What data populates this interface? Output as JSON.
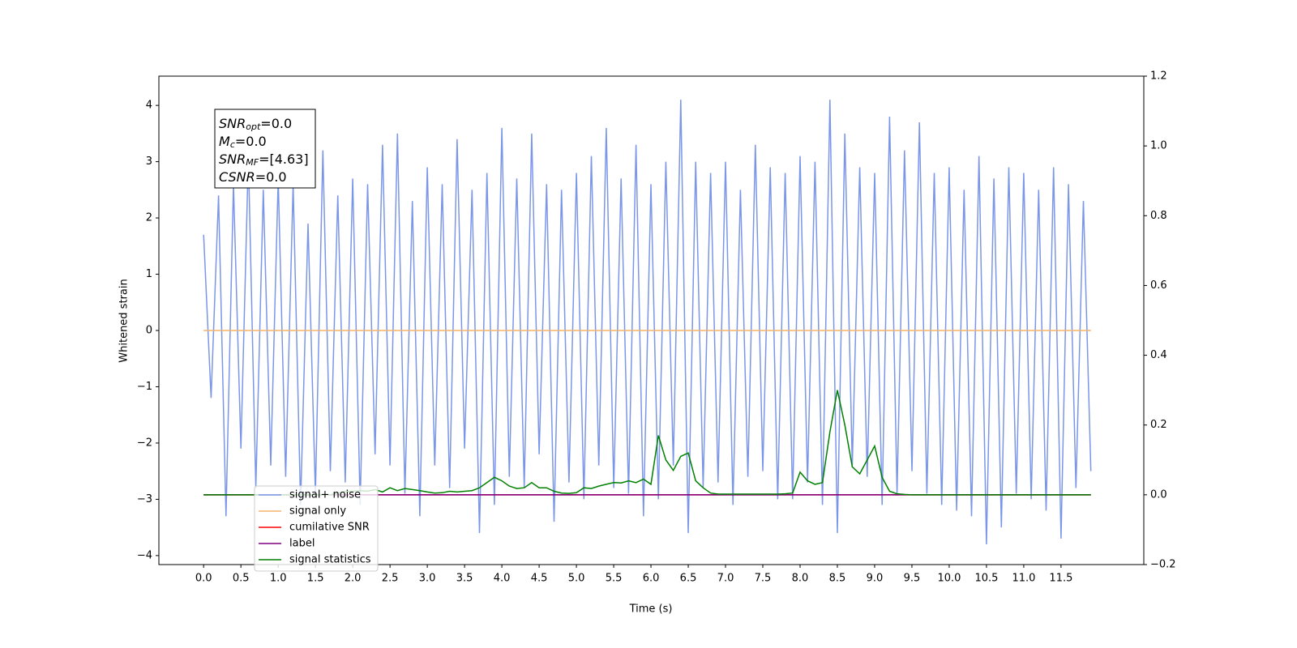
{
  "chart_data": {
    "type": "line",
    "xlabel": "Time (s)",
    "ylabel": "Whitened strain",
    "xlim": [
      -0.6,
      12.61
    ],
    "ylim": [
      -4.16,
      4.52
    ],
    "y2lim": [
      -0.2,
      1.2
    ],
    "xticks": [
      {
        "value": 0,
        "label": "0.0"
      },
      0.5,
      {
        "value": 1,
        "label": "1.0"
      },
      1.5,
      {
        "value": 2,
        "label": "2.0"
      },
      2.5,
      {
        "value": 3,
        "label": "3.0"
      },
      3.5,
      {
        "value": 4,
        "label": "4.0"
      },
      4.5,
      {
        "value": 5,
        "label": "5.0"
      },
      5.5,
      {
        "value": 6,
        "label": "6.0"
      },
      6.5,
      {
        "value": 7,
        "label": "7.0"
      },
      7.5,
      {
        "value": 8,
        "label": "8.0"
      },
      8.5,
      {
        "value": 9,
        "label": "9.0"
      },
      9.5,
      {
        "value": 10,
        "label": "10.0"
      },
      10.5,
      {
        "value": 11,
        "label": "11.0"
      },
      11.5
    ],
    "yticks": [
      {
        "value": -4,
        "label": "−4"
      },
      {
        "value": -3,
        "label": "−3"
      },
      {
        "value": -2,
        "label": "−2"
      },
      {
        "value": -1,
        "label": "−1"
      },
      0,
      1,
      2,
      3,
      4
    ],
    "y2ticks": [
      {
        "value": -0.2,
        "label": "−0.2"
      },
      {
        "value": 0,
        "label": "0.0"
      },
      0.2,
      0.4,
      0.6,
      0.8,
      {
        "value": 1,
        "label": "1.0"
      },
      1.2
    ],
    "legend": "lower left",
    "annotations": [
      {
        "base": "SNR",
        "sub": "opt",
        "text": "=0.0"
      },
      {
        "base": "M",
        "sub": "c",
        "text": "=0.0"
      },
      {
        "base": "SNR",
        "sub": "MF",
        "text": "=[4.63]"
      },
      {
        "base": "CSNR",
        "text": "=0.0"
      }
    ],
    "x": [
      0,
      0.1,
      0.2,
      0.3,
      0.4,
      0.5,
      0.6,
      0.7,
      0.8,
      0.9,
      1,
      1.1,
      1.2,
      1.3,
      1.4,
      1.5,
      1.6,
      1.7,
      1.8,
      1.9,
      2,
      2.1,
      2.2,
      2.3,
      2.4,
      2.5,
      2.6,
      2.7,
      2.8,
      2.9,
      3,
      3.1,
      3.2,
      3.3,
      3.4,
      3.5,
      3.6,
      3.7,
      3.8,
      3.9,
      4,
      4.1,
      4.2,
      4.3,
      4.4,
      4.5,
      4.6,
      4.7,
      4.8,
      4.9,
      5,
      5.1,
      5.2,
      5.3,
      5.4,
      5.5,
      5.6,
      5.7,
      5.8,
      5.9,
      6,
      6.1,
      6.2,
      6.3,
      6.4,
      6.5,
      6.6,
      6.7,
      6.8,
      6.9,
      7,
      7.1,
      7.2,
      7.3,
      7.4,
      7.5,
      7.6,
      7.7,
      7.8,
      7.9,
      8,
      8.1,
      8.2,
      8.3,
      8.4,
      8.5,
      8.6,
      8.7,
      8.8,
      8.9,
      9,
      9.1,
      9.2,
      9.3,
      9.4,
      9.5,
      9.6,
      9.7,
      9.8,
      9.9,
      10,
      10.1,
      10.2,
      10.3,
      10.4,
      10.5,
      10.6,
      10.7,
      10.8,
      10.9,
      11,
      11.1,
      11.2,
      11.3,
      11.4,
      11.5,
      11.6,
      11.7,
      11.8,
      11.9
    ],
    "series": [
      {
        "name": "signal+ noise",
        "color": "#7b96e8",
        "values": [
          1.7,
          -1.2,
          2.4,
          -3.3,
          2.6,
          -2.1,
          3.1,
          -2.8,
          2.5,
          -2.4,
          2.7,
          -2.6,
          2.6,
          -3.1,
          1.9,
          -2.9,
          3.2,
          -2.5,
          2.4,
          -2.7,
          2.7,
          -3.1,
          2.6,
          -2.2,
          3.3,
          -2.4,
          3.5,
          -2.9,
          2.3,
          -3.3,
          2.9,
          -2.4,
          2.6,
          -2.8,
          3.4,
          -2.1,
          2.5,
          -3.6,
          2.8,
          -3.1,
          3.6,
          -2.6,
          2.7,
          -2.8,
          3.5,
          -2.2,
          2.6,
          -3.4,
          2.5,
          -2.7,
          2.8,
          -3.0,
          3.1,
          -2.4,
          3.6,
          -2.8,
          2.7,
          -2.9,
          3.3,
          -3.3,
          2.6,
          -3.0,
          3.0,
          -2.4,
          4.1,
          -3.6,
          3.0,
          -2.8,
          2.8,
          -2.7,
          3.0,
          -3.1,
          2.5,
          -2.6,
          3.3,
          -2.5,
          2.9,
          -3.0,
          2.8,
          -3.0,
          3.1,
          -2.7,
          3.0,
          -3.1,
          4.1,
          -3.6,
          3.5,
          -2.4,
          2.9,
          -2.6,
          2.8,
          -3.1,
          3.8,
          -2.9,
          3.2,
          -2.5,
          3.7,
          -2.9,
          2.8,
          -3.1,
          2.9,
          -3.2,
          2.5,
          -3.3,
          3.1,
          -3.8,
          2.7,
          -3.5,
          2.9,
          -2.9,
          2.8,
          -3.0,
          2.5,
          -3.2,
          2.9,
          -3.7,
          2.6,
          -2.8,
          2.3,
          -2.5
        ]
      },
      {
        "name": "signal only",
        "color": "#f5b36b",
        "values": [
          0,
          0,
          0,
          0,
          0,
          0,
          0,
          0,
          0,
          0,
          0,
          0,
          0,
          0,
          0,
          0,
          0,
          0,
          0,
          0,
          0,
          0,
          0,
          0,
          0,
          0,
          0,
          0,
          0,
          0,
          0,
          0,
          0,
          0,
          0,
          0,
          0,
          0,
          0,
          0,
          0,
          0,
          0,
          0,
          0,
          0,
          0,
          0,
          0,
          0,
          0,
          0,
          0,
          0,
          0,
          0,
          0,
          0,
          0,
          0,
          0,
          0,
          0,
          0,
          0,
          0,
          0,
          0,
          0,
          0,
          0,
          0,
          0,
          0,
          0,
          0,
          0,
          0,
          0,
          0,
          0,
          0,
          0,
          0,
          0,
          0,
          0,
          0,
          0,
          0,
          0,
          0,
          0,
          0,
          0,
          0,
          0,
          0,
          0,
          0,
          0,
          0,
          0,
          0,
          0,
          0,
          0,
          0,
          0,
          0,
          0,
          0,
          0,
          0,
          0,
          0,
          0,
          0,
          0,
          0
        ]
      },
      {
        "name": "cumilative SNR",
        "color": "#ff0000",
        "axis": "y2",
        "values": [
          0,
          0,
          0,
          0,
          0,
          0,
          0,
          0,
          0,
          0,
          0,
          0,
          0,
          0,
          0,
          0,
          0,
          0,
          0,
          0,
          0,
          0,
          0,
          0,
          0,
          0,
          0,
          0,
          0,
          0,
          0,
          0,
          0,
          0,
          0,
          0,
          0,
          0,
          0,
          0,
          0,
          0,
          0,
          0,
          0,
          0,
          0,
          0,
          0,
          0,
          0,
          0,
          0,
          0,
          0,
          0,
          0,
          0,
          0,
          0,
          0,
          0,
          0,
          0,
          0,
          0,
          0,
          0,
          0,
          0,
          0,
          0,
          0,
          0,
          0,
          0,
          0,
          0,
          0,
          0,
          0,
          0,
          0,
          0,
          0,
          0,
          0,
          0,
          0,
          0,
          0,
          0,
          0,
          0,
          0,
          0,
          0,
          0,
          0,
          0,
          0,
          0,
          0,
          0,
          0,
          0,
          0,
          0,
          0,
          0,
          0,
          0,
          0,
          0,
          0,
          0,
          0,
          0,
          0,
          0
        ]
      },
      {
        "name": "label",
        "color": "#800080",
        "axis": "y2",
        "values": [
          0,
          0,
          0,
          0,
          0,
          0,
          0,
          0,
          0,
          0,
          0,
          0,
          0,
          0,
          0,
          0,
          0,
          0,
          0,
          0,
          0,
          0,
          0,
          0,
          0,
          0,
          0,
          0,
          0,
          0,
          0,
          0,
          0,
          0,
          0,
          0,
          0,
          0,
          0,
          0,
          0,
          0,
          0,
          0,
          0,
          0,
          0,
          0,
          0,
          0,
          0,
          0,
          0,
          0,
          0,
          0,
          0,
          0,
          0,
          0,
          0,
          0,
          0,
          0,
          0,
          0,
          0,
          0,
          0,
          0,
          0,
          0,
          0,
          0,
          0,
          0,
          0,
          0,
          0,
          0,
          0,
          0,
          0,
          0,
          0,
          0,
          0,
          0,
          0,
          0,
          0,
          0,
          0,
          0,
          0,
          0,
          0,
          0,
          0,
          0,
          0,
          0,
          0,
          0,
          0,
          0,
          0,
          0,
          0,
          0,
          0,
          0,
          0,
          0,
          0,
          0,
          0,
          0,
          0,
          0
        ]
      },
      {
        "name": "signal statistics",
        "color": "#008000",
        "axis": "y2",
        "values": [
          0,
          0,
          0,
          0,
          0,
          0,
          0,
          0,
          0,
          0,
          0,
          0,
          0,
          0,
          0,
          0,
          0,
          0,
          0.005,
          0.01,
          0.01,
          0.012,
          0.01,
          0.015,
          0.008,
          0.02,
          0.012,
          0.018,
          0.015,
          0.012,
          0.008,
          0.005,
          0.006,
          0.01,
          0.008,
          0.01,
          0.012,
          0.02,
          0.035,
          0.05,
          0.04,
          0.025,
          0.018,
          0.02,
          0.035,
          0.02,
          0.02,
          0.01,
          0.005,
          0.004,
          0.006,
          0.02,
          0.018,
          0.025,
          0.03,
          0.035,
          0.034,
          0.04,
          0.035,
          0.045,
          0.03,
          0.17,
          0.1,
          0.07,
          0.11,
          0.12,
          0.04,
          0.02,
          0.005,
          0.002,
          0.002,
          0.002,
          0.002,
          0.002,
          0.002,
          0.002,
          0.002,
          0.002,
          0.003,
          0.005,
          0.065,
          0.04,
          0.03,
          0.035,
          0.18,
          0.3,
          0.2,
          0.08,
          0.06,
          0.1,
          0.14,
          0.05,
          0.01,
          0.003,
          0.001,
          0,
          0,
          0,
          0,
          0,
          0,
          0,
          0,
          0,
          0,
          0,
          0,
          0,
          0,
          0,
          0,
          0,
          0,
          0,
          0,
          0,
          0,
          0,
          0,
          0
        ]
      }
    ]
  }
}
